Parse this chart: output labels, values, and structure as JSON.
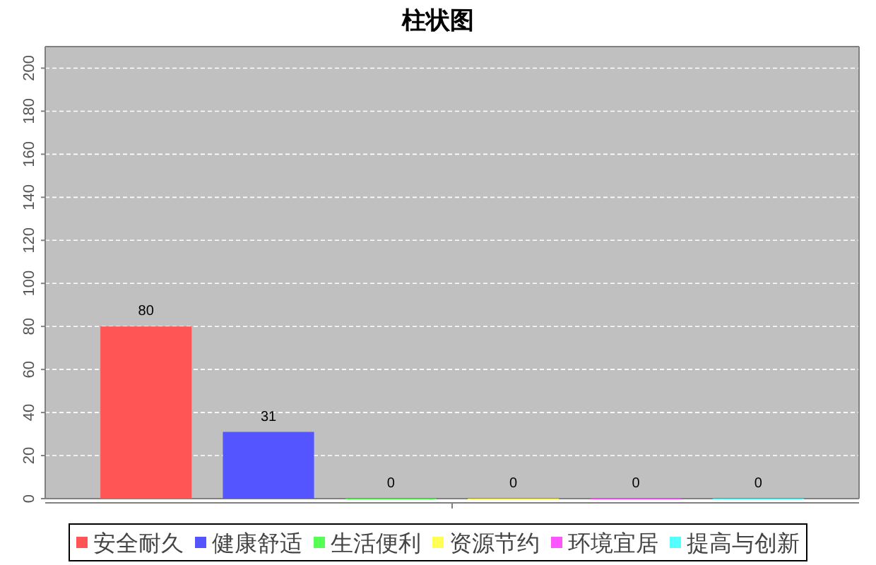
{
  "chart_data": {
    "type": "bar",
    "title": "柱状图",
    "categories": [
      null
    ],
    "series": [
      {
        "name": "安全耐久",
        "color": "#ff5555",
        "values": [
          80
        ]
      },
      {
        "name": "健康舒适",
        "color": "#5555ff",
        "values": [
          31
        ]
      },
      {
        "name": "生活便利",
        "color": "#55ff55",
        "values": [
          0
        ]
      },
      {
        "name": "资源节约",
        "color": "#ffff55",
        "values": [
          0
        ]
      },
      {
        "name": "环境宜居",
        "color": "#ff55ff",
        "values": [
          0
        ]
      },
      {
        "name": "提高与创新",
        "color": "#55ffff",
        "values": [
          0
        ]
      }
    ],
    "ylim": [
      0,
      210
    ],
    "yticks": [
      0,
      20,
      40,
      60,
      80,
      100,
      120,
      140,
      160,
      180,
      200
    ],
    "grid": "y",
    "legend": "bottom",
    "data_labels": true
  }
}
